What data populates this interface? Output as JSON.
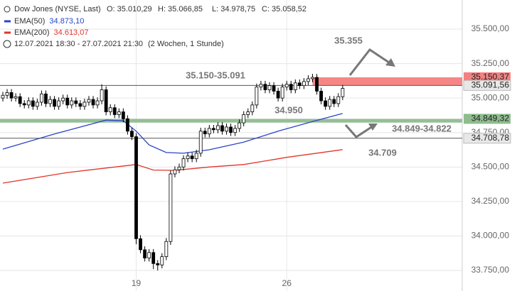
{
  "chart_data": {
    "type": "candlestick",
    "title": "Dow Jones (NYSE, Last)",
    "ohlc": [
      "O: 35.010,29",
      "H: 35.066,85",
      "L: 34.978,75",
      "C: 35.058,52"
    ],
    "period": "12.07.2021 18:30 - 27.07.2021 21:30",
    "interval": "(2 Wochen, 1 Stunde)",
    "x": [
      0,
      1,
      2,
      3,
      4,
      5,
      6,
      7,
      8,
      9,
      10,
      11,
      12,
      13,
      14,
      15,
      16,
      17,
      18,
      19,
      20,
      21,
      22,
      23,
      24,
      25,
      26,
      27,
      28,
      29,
      30,
      31,
      32,
      33,
      34,
      35,
      36,
      37,
      38,
      39,
      40,
      41,
      42,
      43,
      44,
      45,
      46,
      47,
      48,
      49,
      50,
      51,
      52,
      53,
      54,
      55,
      56,
      57,
      58,
      59,
      60,
      61,
      62,
      63,
      64,
      65,
      66,
      67,
      68,
      69,
      70,
      71,
      72,
      73,
      74,
      75,
      76,
      77,
      78,
      79
    ],
    "open": [
      35000,
      35020,
      35040,
      35000,
      35010,
      34960,
      34950,
      34980,
      34940,
      34970,
      35030,
      34960,
      34990,
      34940,
      34980,
      35000,
      34950,
      34980,
      34960,
      34940,
      34970,
      34990,
      34950,
      34980,
      35060,
      34900,
      34930,
      34880,
      34900,
      34850,
      34760,
      34720,
      33980,
      33900,
      33840,
      33880,
      33800,
      33790,
      33850,
      33960,
      34450,
      34480,
      34500,
      34560,
      34580,
      34560,
      34600,
      34760,
      34740,
      34780,
      34770,
      34800,
      34760,
      34790,
      34750,
      34780,
      34820,
      34880,
      34900,
      34950,
      35080,
      35100,
      35060,
      35090,
      35050,
      35000,
      35080,
      35100,
      35060,
      35110,
      35090,
      35120,
      35140,
      35150,
      35050,
      34980,
      34940,
      34990,
      34960,
      35010
    ],
    "high": [
      35045,
      35065,
      35065,
      35035,
      35035,
      34985,
      35005,
      35005,
      34995,
      35055,
      35055,
      35015,
      35015,
      35005,
      35025,
      35025,
      35005,
      35005,
      34985,
      34995,
      35015,
      35015,
      35005,
      35100,
      35085,
      34955,
      34955,
      34925,
      34925,
      34875,
      34785,
      34745,
      34005,
      33925,
      33905,
      33905,
      33825,
      33875,
      33985,
      34475,
      34505,
      34525,
      34585,
      34605,
      34605,
      34625,
      34785,
      34785,
      34805,
      34805,
      34825,
      34825,
      34815,
      34815,
      34805,
      34845,
      34905,
      34925,
      34975,
      35105,
      35125,
      35125,
      35115,
      35115,
      35075,
      35105,
      35125,
      35125,
      35135,
      35135,
      35145,
      35165,
      35175,
      35175,
      35075,
      35005,
      35015,
      35015,
      35035,
      35095
    ],
    "low": [
      34975,
      34995,
      34975,
      34975,
      34935,
      34925,
      34925,
      34915,
      34915,
      34945,
      34935,
      34935,
      34915,
      34915,
      34955,
      34925,
      34925,
      34935,
      34915,
      34915,
      34945,
      34925,
      34925,
      34955,
      34875,
      34875,
      34855,
      34855,
      34825,
      34735,
      34695,
      33940,
      33875,
      33815,
      33815,
      33760,
      33750,
      33765,
      33825,
      33935,
      34425,
      34455,
      34475,
      34535,
      34535,
      34535,
      34575,
      34715,
      34715,
      34745,
      34745,
      34735,
      34735,
      34725,
      34725,
      34755,
      34795,
      34855,
      34875,
      34925,
      35055,
      35035,
      35035,
      35025,
      34975,
      34975,
      35055,
      35035,
      35035,
      35065,
      35065,
      35095,
      35115,
      35025,
      34955,
      34915,
      34915,
      34935,
      34935,
      34985
    ],
    "close": [
      35020,
      35040,
      35000,
      35010,
      34960,
      34950,
      34980,
      34940,
      34970,
      35030,
      34960,
      34990,
      34940,
      34980,
      35000,
      34950,
      34980,
      34960,
      34940,
      34970,
      34990,
      34950,
      34980,
      35060,
      34900,
      34930,
      34880,
      34900,
      34850,
      34760,
      34720,
      33980,
      33900,
      33840,
      33880,
      33800,
      33790,
      33850,
      33960,
      34450,
      34480,
      34500,
      34560,
      34580,
      34560,
      34600,
      34760,
      34740,
      34780,
      34770,
      34800,
      34760,
      34790,
      34750,
      34780,
      34820,
      34880,
      34900,
      34950,
      35080,
      35100,
      35060,
      35090,
      35050,
      35000,
      35080,
      35100,
      35060,
      35110,
      35090,
      35120,
      35140,
      35150,
      35050,
      34980,
      34940,
      34990,
      34960,
      35010,
      35070
    ],
    "up_color": "#ffffff",
    "down_color": "#000000",
    "series": [
      {
        "name": "EMA(50)",
        "legend_value": "34.873,10",
        "color": "#2a45c8",
        "x": [
          0,
          12,
          24,
          28,
          31,
          34,
          38,
          42,
          48,
          56,
          64,
          72,
          79
        ],
        "values": [
          34630,
          34740,
          34840,
          34835,
          34760,
          34660,
          34605,
          34600,
          34625,
          34680,
          34760,
          34830,
          34888
        ]
      },
      {
        "name": "EMA(200)",
        "legend_value": "34.613,07",
        "color": "#e0352b",
        "x": [
          0,
          15,
          31,
          35,
          40,
          48,
          56,
          66,
          79
        ],
        "values": [
          34383,
          34460,
          34518,
          34478,
          34476,
          34500,
          34518,
          34570,
          34626
        ]
      }
    ],
    "levels": [
      {
        "value": 35091.56,
        "label": "35.091,56",
        "color": "#555555"
      },
      {
        "value": 34708.78,
        "label": "34.708,78",
        "color": "#555555"
      }
    ],
    "zones": [
      {
        "from": 35091.56,
        "to": 35150.37,
        "label": "35.150,37",
        "color": "#f58080",
        "start": 72
      },
      {
        "from": 34822,
        "to": 34849.32,
        "label": "34.849,32",
        "color": "#8fbc8f"
      }
    ],
    "annotations": [
      "35.355",
      "35.150-35.091",
      "34.950",
      "34.849-34.822",
      "34.709"
    ],
    "xlim": [
      -0.66,
      106.8
    ],
    "xticks": [
      {
        "value": 31,
        "label": "19"
      },
      {
        "value": 66,
        "label": "26"
      }
    ],
    "ylim": [
      33601,
      35711
    ],
    "yticks": [
      {
        "value": 33750,
        "label": "33.750,00"
      },
      {
        "value": 34000,
        "label": "34.000,00"
      },
      {
        "value": 34250,
        "label": "34.250,00"
      },
      {
        "value": 34500,
        "label": "34.500,00"
      },
      {
        "value": 34750,
        "label": "34.750,00"
      },
      {
        "value": 35000,
        "label": "35.000,00"
      },
      {
        "value": 35250,
        "label": "35.250,00"
      },
      {
        "value": 35500,
        "label": "35.500,00"
      }
    ],
    "grid": true
  }
}
